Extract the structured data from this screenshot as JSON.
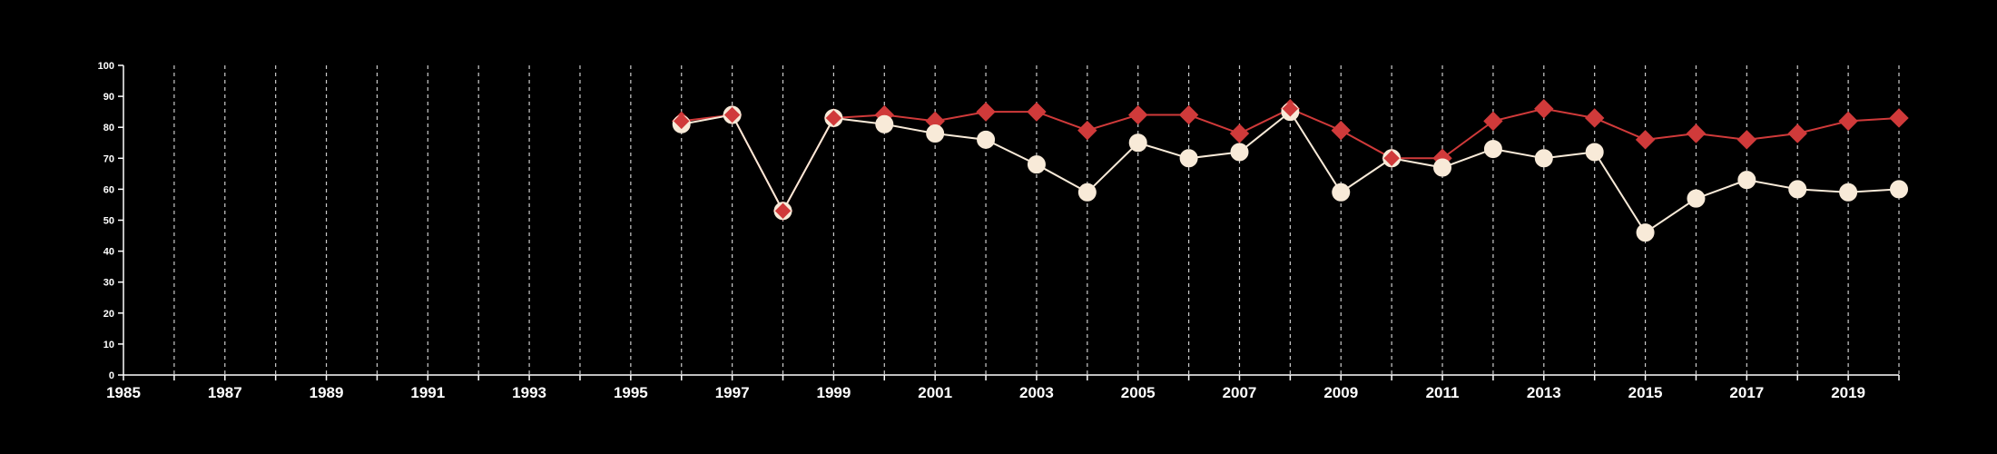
{
  "colors": {
    "background": "#000000",
    "axis": "#ffffff",
    "grid": "#cccccc",
    "series_red": "#d03a3a",
    "series_white": "#f8ead8"
  },
  "chart_data": {
    "type": "line",
    "title": "",
    "xlabel": "",
    "ylabel": "",
    "xlim": [
      1985,
      2020
    ],
    "ylim": [
      0,
      100
    ],
    "yticks": [
      0,
      10,
      20,
      30,
      40,
      50,
      60,
      70,
      80,
      90,
      100
    ],
    "xtick_labels": [
      1985,
      1987,
      1989,
      1991,
      1993,
      1995,
      1997,
      1999,
      2001,
      2003,
      2005,
      2007,
      2009,
      2011,
      2013,
      2015,
      2017,
      2019
    ],
    "grid": "vertical dashed at every year",
    "legend": "none",
    "series": [
      {
        "marker": "diamond",
        "color": "#d03a3a",
        "x": [
          1996,
          1997,
          1998,
          1999,
          2000,
          2001,
          2002,
          2003,
          2004,
          2005,
          2006,
          2007,
          2008,
          2009,
          2010,
          2011,
          2012,
          2013,
          2014,
          2015,
          2016,
          2017,
          2018,
          2019,
          2020
        ],
        "values": [
          82,
          84,
          53,
          83,
          84,
          82,
          85,
          85,
          79,
          84,
          84,
          78,
          86,
          79,
          70,
          70,
          82,
          86,
          83,
          76,
          78,
          76,
          78,
          82,
          83
        ]
      },
      {
        "marker": "circle",
        "color": "#f8ead8",
        "x": [
          1996,
          1997,
          1998,
          1999,
          2000,
          2001,
          2002,
          2003,
          2004,
          2005,
          2006,
          2007,
          2008,
          2009,
          2010,
          2011,
          2012,
          2013,
          2014,
          2015,
          2016,
          2017,
          2018,
          2019,
          2020
        ],
        "values": [
          81,
          84,
          53,
          83,
          81,
          78,
          76,
          68,
          59,
          75,
          70,
          72,
          85,
          59,
          70,
          67,
          73,
          70,
          72,
          46,
          57,
          63,
          60,
          59,
          60
        ]
      }
    ]
  }
}
